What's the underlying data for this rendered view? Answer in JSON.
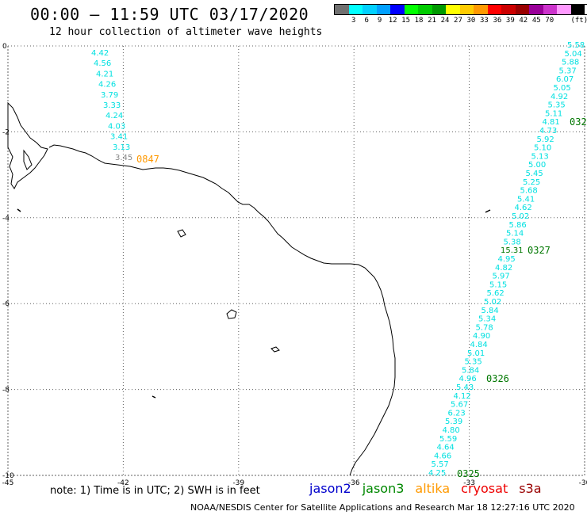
{
  "header": {
    "title": "00:00 – 11:59 UTC 03/17/2020",
    "subtitle": "12 hour collection of altimeter wave heights"
  },
  "color_scale": {
    "unit": "(ft)",
    "items": [
      {
        "label": "",
        "color": "#707070"
      },
      {
        "label": "3",
        "color": "#00ffff"
      },
      {
        "label": "6",
        "color": "#00d0ff"
      },
      {
        "label": "9",
        "color": "#00a0ff"
      },
      {
        "label": "12",
        "color": "#0000ff"
      },
      {
        "label": "15",
        "color": "#00ff00"
      },
      {
        "label": "18",
        "color": "#00cc00"
      },
      {
        "label": "21",
        "color": "#009900"
      },
      {
        "label": "24",
        "color": "#ffff00"
      },
      {
        "label": "27",
        "color": "#ffcc00"
      },
      {
        "label": "30",
        "color": "#ff9900"
      },
      {
        "label": "33",
        "color": "#ff0000"
      },
      {
        "label": "36",
        "color": "#cc0000"
      },
      {
        "label": "39",
        "color": "#990000"
      },
      {
        "label": "42",
        "color": "#990099"
      },
      {
        "label": "45",
        "color": "#cc33cc"
      },
      {
        "label": "70",
        "color": "#ff99ff"
      },
      {
        "label": "",
        "color": "#000000"
      }
    ]
  },
  "map": {
    "lon_ticks": [
      "-45",
      "-42",
      "-39",
      "-36",
      "-33",
      "-30"
    ],
    "lat_ticks": [
      "0",
      "-2",
      "-4",
      "-6",
      "-8",
      "-10"
    ],
    "colors": {
      "cyan": "#00e0e0",
      "green": "#007700",
      "orange": "#ff9900",
      "coast": "#000000",
      "grid": "#606060"
    },
    "track_west_heights": [
      "4.42",
      "4.56",
      "4.21",
      "4.26",
      "3.79",
      "3.33",
      "4.24",
      "4.03",
      "3.41",
      "3.13",
      "3.45"
    ],
    "track_west_time": "0847",
    "track_east_heights": [
      "5.58",
      "5.04",
      "5.88",
      "5.37",
      "6.07",
      "5.05",
      "4.92",
      "5.35",
      "5.11",
      "4.81",
      "4.73",
      "5.92",
      "5.10",
      "5.13",
      "5.00",
      "5.45",
      "5.25",
      "5.68",
      "5.41",
      "4.62",
      "5.02",
      "5.86",
      "5.14",
      "5.38",
      "15.31",
      "4.95",
      "4.82",
      "5.97",
      "5.15",
      "5.62",
      "5.02",
      "5.84",
      "5.34",
      "5.78",
      "4.90",
      "4.84",
      "5.01",
      "5.35",
      "5.84",
      "4.96",
      "5.43",
      "4.12",
      "5.67",
      "6.23",
      "5.39",
      "4.80",
      "5.59",
      "4.64",
      "4.66",
      "5.57",
      "4.25"
    ],
    "track_east_times": [
      "032",
      "0327",
      "0326",
      "0325"
    ]
  },
  "footer": {
    "note": "note: 1) Time is in UTC; 2) SWH is in feet",
    "satellites": [
      {
        "name": "jason2",
        "color": "#0000cc"
      },
      {
        "name": "jason3",
        "color": "#008800"
      },
      {
        "name": "altika",
        "color": "#ff9900"
      },
      {
        "name": "cryosat",
        "color": "#ee0000"
      },
      {
        "name": "s3a",
        "color": "#990000"
      }
    ],
    "credit": "NOAA/NESDIS Center for Satellite Applications and Research    Mar 18 12:27:16 UTC 2020"
  }
}
